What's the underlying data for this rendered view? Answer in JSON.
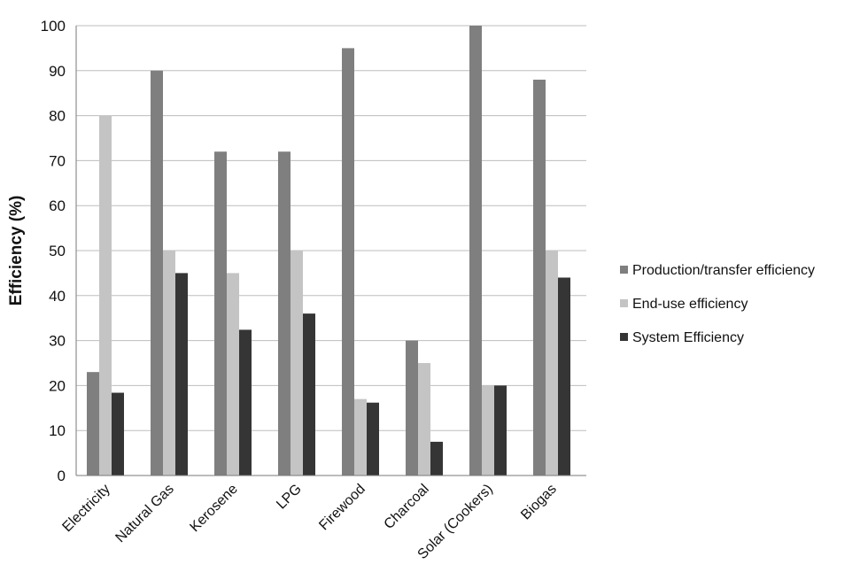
{
  "chart_data": {
    "type": "bar",
    "categories": [
      "Electricity",
      "Natural Gas",
      "Kerosene",
      "LPG",
      "Firewood",
      "Charcoal",
      "Solar (Cookers)",
      "Biogas"
    ],
    "series": [
      {
        "name": "Production/transfer efficiency",
        "color": "#7f7f7f",
        "values": [
          23,
          90,
          72,
          72,
          95,
          30,
          100,
          88
        ]
      },
      {
        "name": "End-use efficiency",
        "color": "#c4c4c4",
        "values": [
          80,
          50,
          45,
          50,
          17,
          25,
          20,
          50
        ]
      },
      {
        "name": "System Efficiency",
        "color": "#353535",
        "values": [
          18.4,
          45,
          32.4,
          36,
          16.2,
          7.5,
          20,
          44
        ]
      }
    ],
    "title": "",
    "xlabel": "",
    "ylabel": "Efficiency (%)",
    "ylim": [
      0,
      100
    ],
    "yticks": [
      0,
      10,
      20,
      30,
      40,
      50,
      60,
      70,
      80,
      90,
      100
    ],
    "grid": true,
    "legend_position": "right"
  }
}
